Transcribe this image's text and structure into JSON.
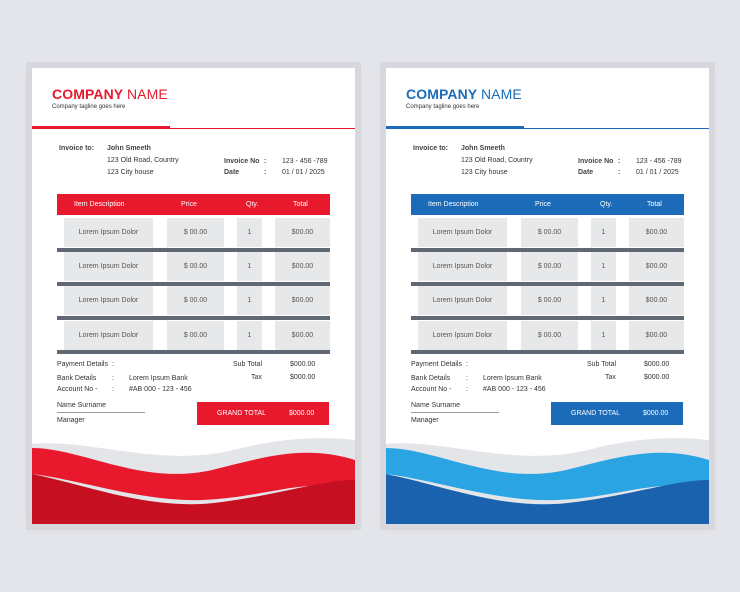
{
  "invoices": [
    {
      "company_bold": "COMPANY",
      "company_rest": "NAME",
      "tagline": "Company tagline goes here",
      "invoice_to_label": "Invoice to:",
      "client_name": "John Smeeth",
      "address_line1": "123 Old Road, Country",
      "address_line2": "123 City house",
      "invoice_no_label": "Invoice No",
      "invoice_no": "123 - 456 -789",
      "date_label": "Date",
      "date_value": "01 / 01 / 2025",
      "colon": ":",
      "headers": [
        "Item  Description",
        "Price",
        "Qty.",
        "Total"
      ],
      "rows": [
        {
          "desc": "Lorem Ipsum Dolor",
          "price": "$ 00.00",
          "qty": "1",
          "total": "$00.00"
        },
        {
          "desc": "Lorem Ipsum Dolor",
          "price": "$ 00.00",
          "qty": "1",
          "total": "$00.00"
        },
        {
          "desc": "Lorem Ipsum Dolor",
          "price": "$ 00.00",
          "qty": "1",
          "total": "$00.00"
        },
        {
          "desc": "Lorem Ipsum Dolor",
          "price": "$ 00.00",
          "qty": "1",
          "total": "$00.00"
        }
      ],
      "payment_details_label": "Payment Details",
      "bank_details_label": "Bank Details",
      "bank_name": "Lorem Ipsum Bank",
      "account_no_label": "Account No -",
      "account_no": "#AB 000 - 123 - 456",
      "subtotal_label": "Sub Total",
      "subtotal_value": "$000.00",
      "tax_label": "Tax",
      "tax_value": "$000.00",
      "grand_total_label": "GRAND TOTAL",
      "grand_total_value": "$000.00",
      "signature_name": "Name  Surname",
      "signature_role": "Manager",
      "accent_color": "#e8192c"
    },
    {
      "company_bold": "COMPANY",
      "company_rest": "NAME",
      "tagline": "Company tagline goes here",
      "invoice_to_label": "Invoice to:",
      "client_name": "John Smeeth",
      "address_line1": "123 Old Road, Country",
      "address_line2": "123 City house",
      "invoice_no_label": "Invoice No",
      "invoice_no": "123 - 456 -789",
      "date_label": "Date",
      "date_value": "01 / 01 / 2025",
      "colon": ":",
      "headers": [
        "Item  Description",
        "Price",
        "Qty.",
        "Total"
      ],
      "rows": [
        {
          "desc": "Lorem Ipsum Dolor",
          "price": "$ 00.00",
          "qty": "1",
          "total": "$00.00"
        },
        {
          "desc": "Lorem Ipsum Dolor",
          "price": "$ 00.00",
          "qty": "1",
          "total": "$00.00"
        },
        {
          "desc": "Lorem Ipsum Dolor",
          "price": "$ 00.00",
          "qty": "1",
          "total": "$00.00"
        },
        {
          "desc": "Lorem Ipsum Dolor",
          "price": "$ 00.00",
          "qty": "1",
          "total": "$00.00"
        }
      ],
      "payment_details_label": "Payment Details",
      "bank_details_label": "Bank Details",
      "bank_name": "Lorem Ipsum Bank",
      "account_no_label": "Account No -",
      "account_no": "#AB 000 - 123 - 456",
      "subtotal_label": "Sub Total",
      "subtotal_value": "$000.00",
      "tax_label": "Tax",
      "tax_value": "$000.00",
      "grand_total_label": "GRAND TOTAL",
      "grand_total_value": "$000.00",
      "signature_name": "Name  Surname",
      "signature_role": "Manager",
      "accent_color": "#1b6bb8"
    }
  ]
}
